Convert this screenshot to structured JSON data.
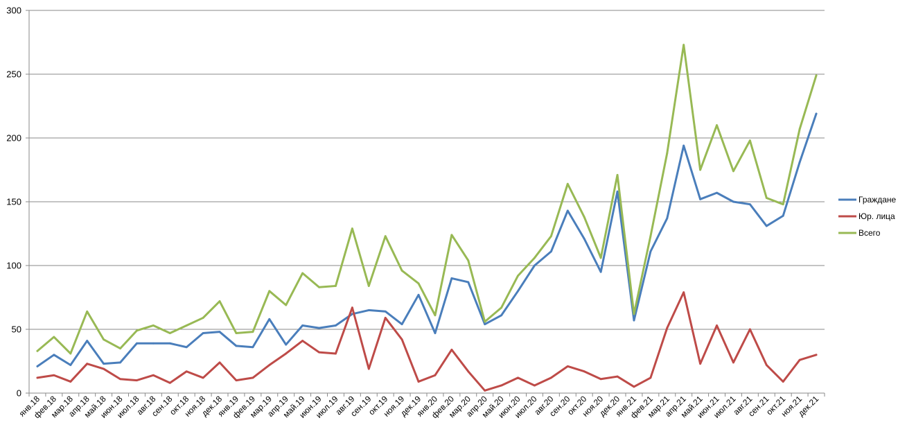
{
  "chart_data": {
    "type": "line",
    "title": "",
    "xlabel": "",
    "ylabel": "",
    "ylim": [
      0,
      300
    ],
    "yticks": [
      0,
      50,
      100,
      150,
      200,
      250,
      300
    ],
    "grid": "horizontal",
    "legend_position": "right",
    "categories": [
      "янв.18",
      "фев.18",
      "мар.18",
      "апр.18",
      "май.18",
      "июн.18",
      "июл.18",
      "авг.18",
      "сен.18",
      "окт.18",
      "ноя.18",
      "дек.18",
      "янв.19",
      "фев.19",
      "мар.19",
      "апр.19",
      "май.19",
      "июн.19",
      "июл.19",
      "авг.19",
      "сен.19",
      "окт.19",
      "ноя.19",
      "дек.19",
      "янв.20",
      "фев.20",
      "мар.20",
      "апр.20",
      "май.20",
      "июн.20",
      "июл.20",
      "авг.20",
      "сен.20",
      "окт.20",
      "ноя.20",
      "дек.20",
      "янв.21",
      "фев.21",
      "мар.21",
      "апр.21",
      "май.21",
      "июн.21",
      "июл.21",
      "авг.21",
      "сен.21",
      "окт.21",
      "ноя.21",
      "дек.21"
    ],
    "series": [
      {
        "name": "Граждане",
        "color": "#4a7ebb",
        "values": [
          21,
          30,
          22,
          41,
          23,
          24,
          39,
          39,
          39,
          36,
          47,
          48,
          37,
          36,
          58,
          38,
          53,
          51,
          53,
          62,
          65,
          64,
          54,
          77,
          47,
          90,
          87,
          54,
          61,
          80,
          100,
          111,
          143,
          121,
          95,
          158,
          57,
          111,
          137,
          194,
          152,
          157,
          150,
          148,
          131,
          139,
          181,
          219
        ]
      },
      {
        "name": "Юр. лица",
        "color": "#be4b48",
        "values": [
          12,
          14,
          9,
          23,
          19,
          11,
          10,
          14,
          8,
          17,
          12,
          24,
          10,
          12,
          22,
          31,
          41,
          32,
          31,
          67,
          19,
          59,
          42,
          9,
          14,
          34,
          17,
          2,
          6,
          12,
          6,
          12,
          21,
          17,
          11,
          13,
          5,
          12,
          51,
          79,
          23,
          53,
          24,
          50,
          22,
          9,
          26,
          30
        ]
      },
      {
        "name": "Всего",
        "color": "#98b954",
        "values": [
          33,
          44,
          31,
          64,
          42,
          35,
          49,
          53,
          47,
          53,
          59,
          72,
          47,
          48,
          80,
          69,
          94,
          83,
          84,
          129,
          84,
          123,
          96,
          86,
          61,
          124,
          104,
          56,
          67,
          92,
          106,
          123,
          164,
          138,
          106,
          171,
          62,
          123,
          188,
          273,
          175,
          210,
          174,
          198,
          153,
          148,
          207,
          249
        ]
      }
    ]
  }
}
